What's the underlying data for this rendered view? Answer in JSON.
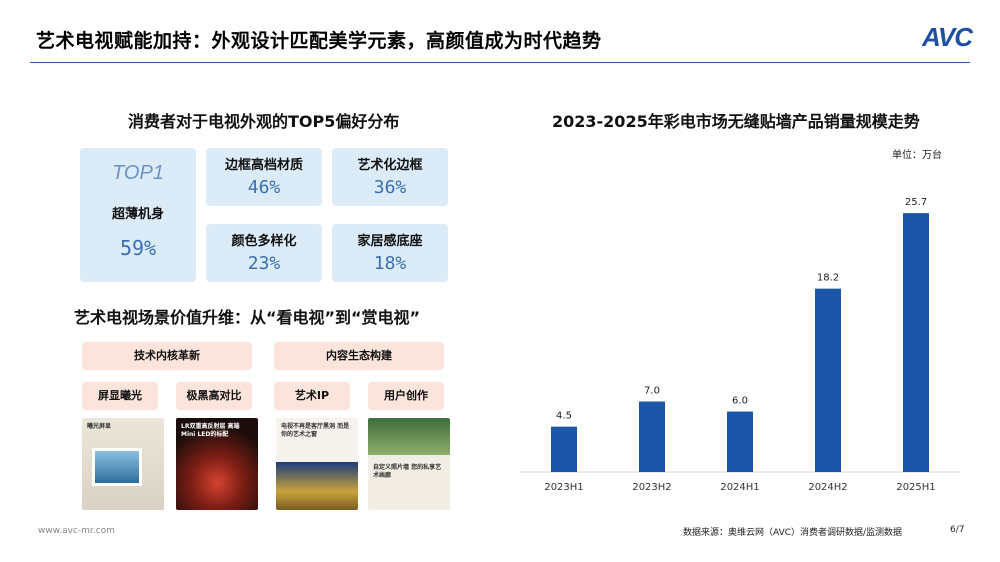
{
  "header": {
    "title": "艺术电视赋能加持：外观设计匹配美学元素，高颜值成为时代趋势",
    "logo": "AVC"
  },
  "top5": {
    "title": "消费者对于电视外观的TOP5偏好分布",
    "top_rank": "TOP1",
    "items": [
      {
        "label": "超薄机身",
        "value": "59%"
      },
      {
        "label": "边框高档材质",
        "value": "46%"
      },
      {
        "label": "艺术化边框",
        "value": "36%"
      },
      {
        "label": "颜色多样化",
        "value": "23%"
      },
      {
        "label": "家居感底座",
        "value": "18%"
      }
    ]
  },
  "scene": {
    "title": "艺术电视场景价值升维：从“看电视”到“赏电视”",
    "pills": [
      "技术内核革新",
      "内容生态构建",
      "屏显曦光",
      "极黑高对比",
      "艺术IP",
      "用户创作"
    ],
    "thumbs": [
      {
        "text": "曦光屏显"
      },
      {
        "text": "LR双重高反射层 高端Mini LED的标配"
      },
      {
        "text": "电视不再是客厅黑洞 而是你的艺术之窗"
      },
      {
        "text": "自定义照片墙 您的私享艺术画廊"
      }
    ]
  },
  "chart_data": {
    "type": "bar",
    "title": "2023-2025年彩电市场无缝贴墙产品销量规模走势",
    "unit": "单位：万台",
    "categories": [
      "2023H1",
      "2023H2",
      "2024H1",
      "2024H2",
      "2025H1"
    ],
    "values": [
      4.5,
      7.0,
      6.0,
      18.2,
      25.7
    ],
    "value_labels": [
      "4.5",
      "7.0",
      "6.0",
      "18.2",
      "25.7"
    ],
    "ylim": [
      0,
      27
    ],
    "grid": false,
    "bar_color": "#1c56a8"
  },
  "footer": {
    "url": "www.avc-mr.com",
    "source": "数据来源：奥维云网（AVC）消费者调研数据/监测数据",
    "page": "6/7"
  }
}
